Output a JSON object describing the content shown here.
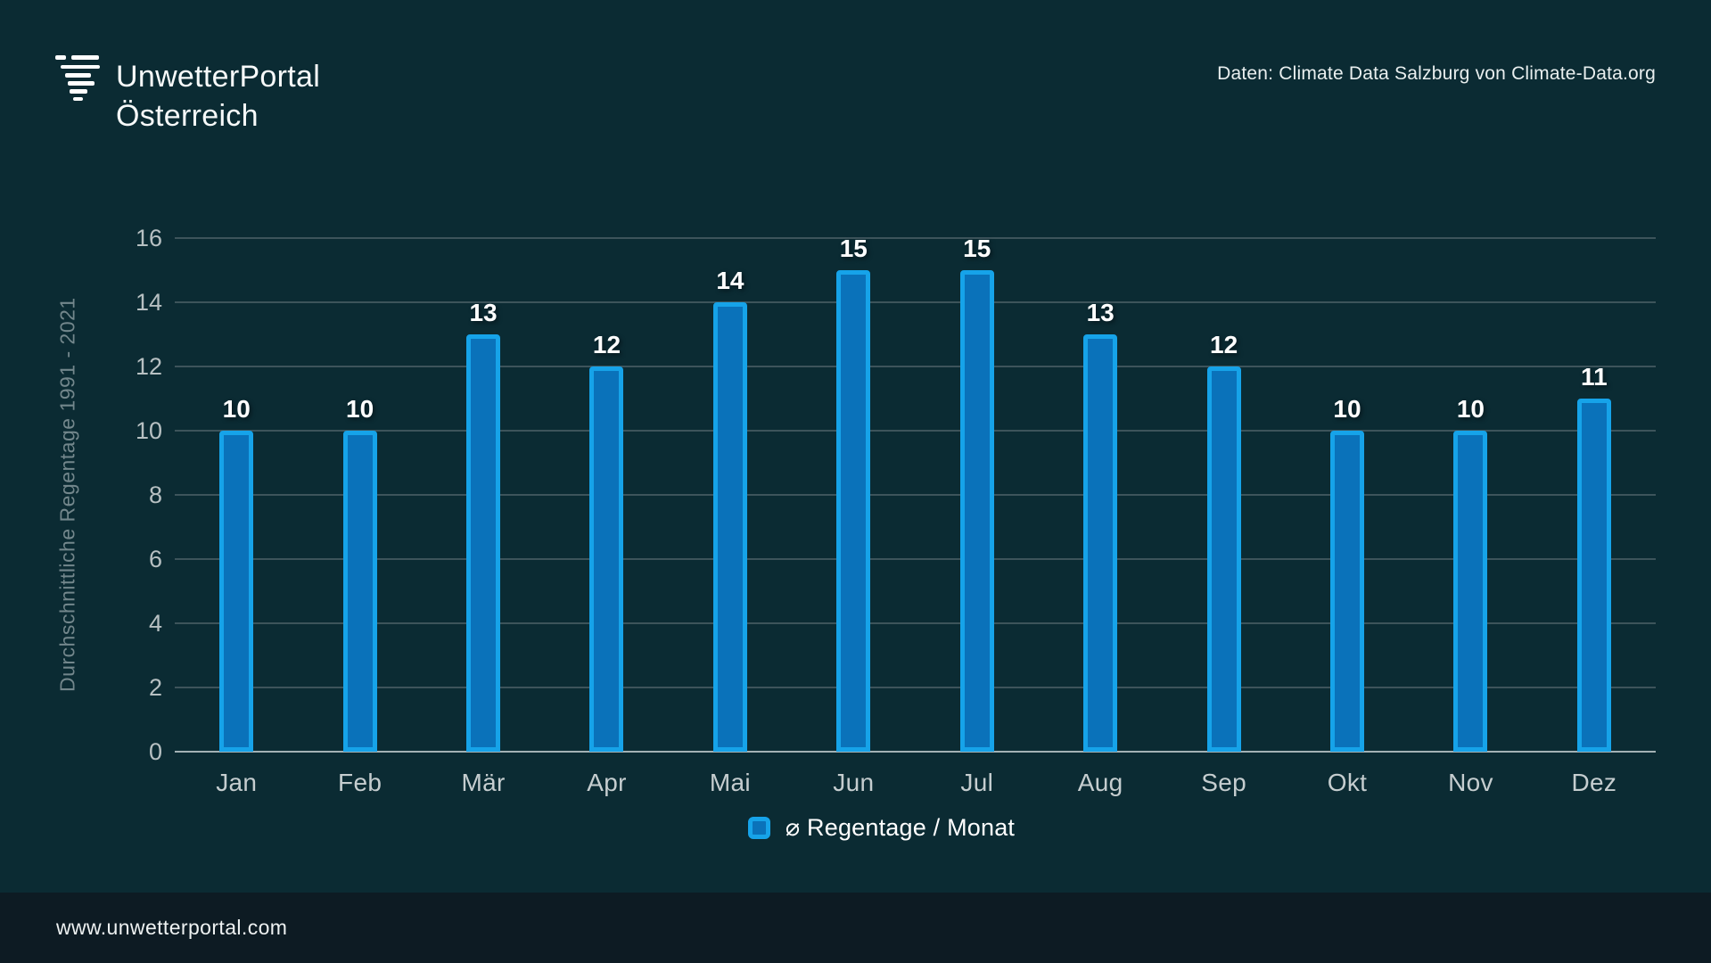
{
  "brand": {
    "line1": "UnwetterPortal",
    "line2": "Österreich"
  },
  "header": {
    "source_note": "Daten: Climate Data Salzburg von Climate-Data.org"
  },
  "chart_data": {
    "type": "bar",
    "categories": [
      "Jan",
      "Feb",
      "Mär",
      "Apr",
      "Mai",
      "Jun",
      "Jul",
      "Aug",
      "Sep",
      "Okt",
      "Nov",
      "Dez"
    ],
    "values": [
      10,
      10,
      13,
      12,
      14,
      15,
      15,
      13,
      12,
      10,
      10,
      11
    ],
    "title": "",
    "xlabel": "",
    "ylabel": "Durchschnittliche Regentage 1991 - 2021",
    "ylim": [
      0,
      16
    ],
    "ytick_step": 2,
    "grid": true,
    "legend": {
      "label": "⌀ Regentage / Monat",
      "position": "bottom"
    },
    "value_labels_shown": true
  },
  "footer": {
    "url": "www.unwetterportal.com"
  },
  "colors": {
    "background": "#0b2b33",
    "footer_background": "#0d1b23",
    "bar_fill": "#0a72ba",
    "bar_border": "#16a3e9",
    "gridline": "#3d545b",
    "axis_line": "#a3b1b4",
    "tick_label": "#b7c0c2",
    "month_label": "#c5cdcf",
    "y_axis_title": "#73878c",
    "text_white": "#f7fafa"
  }
}
